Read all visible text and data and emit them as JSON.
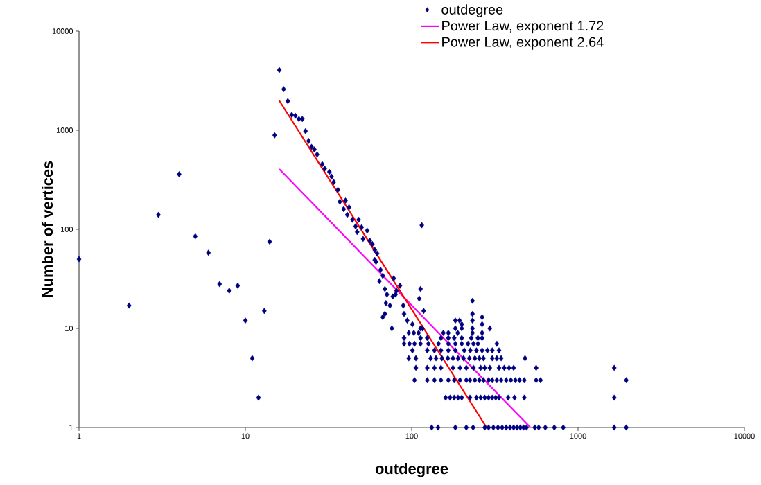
{
  "chart_data": {
    "type": "scatter",
    "xlabel": "outdegree",
    "ylabel": "Number of vertices",
    "log": "xy",
    "xlim": [
      1,
      10000
    ],
    "ylim": [
      1,
      10000
    ],
    "xticks": [
      1,
      10,
      100,
      1000,
      10000
    ],
    "yticks": [
      1,
      10,
      100,
      1000,
      10000
    ],
    "legend": "top right",
    "series": [
      {
        "name": "outdegree",
        "color": "#000080",
        "marker": "diamond",
        "x": [
          1,
          2,
          3,
          4,
          5,
          6,
          7,
          8,
          9,
          10,
          11,
          12,
          13,
          14,
          15,
          16,
          17,
          18,
          19,
          20,
          21,
          22,
          23,
          24,
          25,
          26,
          27,
          29,
          30,
          32,
          33,
          34,
          36,
          37,
          39,
          40,
          41,
          42,
          44,
          46,
          47,
          48,
          50,
          51,
          54,
          56,
          58,
          60,
          61,
          62,
          60,
          65,
          67,
          64,
          69,
          71,
          70,
          67,
          69,
          77,
          80,
          81,
          74,
          76,
          89,
          90,
          94,
          101,
          78,
          85,
          113,
          111,
          118,
          113,
          115,
          232,
          232,
          265,
          183,
          194,
          232,
          200,
          265,
          132,
          144,
          183,
          213,
          234,
          275,
          290,
          310,
          330,
          350,
          370,
          390,
          410,
          430,
          450,
          470,
          490,
          550,
          580,
          636,
          720,
          815,
          1650,
          1950,
          160,
          170,
          180,
          190,
          200,
          224,
          245,
          260,
          275,
          290,
          305,
          320,
          335,
          380,
          415,
          475,
          1650,
          104,
          124,
          137,
          150,
          166,
          180,
          195,
          213,
          224,
          240,
          255,
          270,
          290,
          305,
          325,
          345,
          370,
          395,
          420,
          445,
          475,
          560,
          595,
          1950,
          106,
          124,
          137,
          150,
          177,
          195,
          213,
          235,
          260,
          275,
          295,
          335,
          360,
          385,
          410,
          560,
          1650,
          96,
          106,
          130,
          140,
          152,
          165,
          177,
          190,
          205,
          222,
          240,
          255,
          270,
          305,
          325,
          345,
          480,
          101,
          124,
          137,
          150,
          166,
          183,
          207,
          225,
          245,
          265,
          285,
          305,
          335,
          90,
          97,
          104,
          113,
          126,
          145,
          166,
          183,
          200,
          218,
          235,
          250,
          325,
          90,
          113,
          124,
          150,
          166,
          180,
          200,
          228,
          250,
          265,
          96,
          103,
          110,
          155,
          166,
          189,
          232,
          265,
          116,
          183,
          200,
          232,
          295
        ],
        "values": [
          50,
          17,
          140,
          360,
          85,
          58,
          28,
          24,
          27,
          12,
          5,
          2,
          15,
          75,
          890,
          4060,
          2600,
          1970,
          1430,
          1400,
          1300,
          1300,
          980,
          780,
          680,
          640,
          570,
          455,
          410,
          380,
          340,
          300,
          250,
          190,
          160,
          195,
          140,
          167,
          125,
          107,
          94,
          125,
          105,
          80,
          97,
          77,
          71,
          62,
          47,
          57,
          49,
          39,
          34,
          30,
          25,
          22,
          18,
          13,
          14,
          21,
          22,
          24,
          17,
          10,
          17,
          14,
          12,
          11,
          32,
          27,
          25,
          20,
          15,
          10,
          110,
          19,
          14,
          13,
          12,
          12,
          12,
          11,
          11,
          1,
          1,
          1,
          1,
          1,
          1,
          1,
          1,
          1,
          1,
          1,
          1,
          1,
          1,
          1,
          1,
          1,
          1,
          1,
          1,
          1,
          1,
          1,
          1,
          2,
          2,
          2,
          2,
          2,
          2,
          2,
          2,
          2,
          2,
          2,
          2,
          2,
          2,
          2,
          2,
          2,
          3,
          3,
          3,
          3,
          3,
          3,
          3,
          3,
          3,
          3,
          3,
          3,
          3,
          3,
          3,
          3,
          3,
          3,
          3,
          3,
          3,
          3,
          3,
          3,
          4,
          4,
          4,
          4,
          4,
          4,
          4,
          4,
          4,
          4,
          4,
          4,
          4,
          4,
          4,
          4,
          4,
          5,
          5,
          5,
          5,
          5,
          5,
          5,
          5,
          5,
          5,
          5,
          5,
          5,
          5,
          5,
          5,
          5,
          6,
          6,
          6,
          6,
          6,
          6,
          6,
          6,
          6,
          6,
          6,
          6,
          6,
          7,
          7,
          7,
          7,
          7,
          7,
          7,
          7,
          7,
          7,
          7,
          7,
          7,
          8,
          8,
          8,
          8,
          8,
          8,
          8,
          8,
          8,
          8,
          9,
          9,
          9,
          9,
          9,
          9,
          9,
          9,
          10,
          10,
          10,
          10,
          10
        ]
      },
      {
        "name": "Power Law, exponent 1.72",
        "type": "line",
        "color": "#ff00ff",
        "marker": "none",
        "x": [
          16,
          517
        ],
        "values": [
          406,
          1
        ]
      },
      {
        "name": "Power Law, exponent 2.64",
        "type": "line",
        "color": "#ff0000",
        "marker": "none",
        "x": [
          16,
          282
        ],
        "values": [
          1990,
          1
        ]
      }
    ]
  }
}
